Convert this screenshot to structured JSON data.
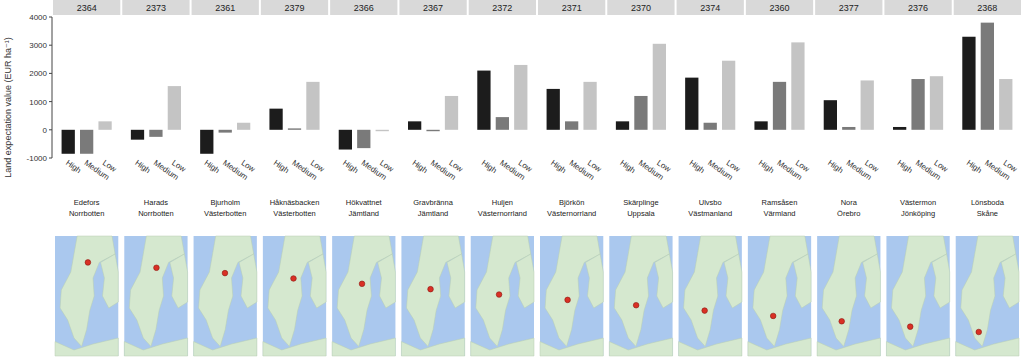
{
  "chart_data": [
    {
      "type": "bar",
      "title": "2364",
      "annotations": [
        "Edefors",
        "Norrbotten"
      ],
      "y_label": "Land expectation value (EUR ha⁻¹)",
      "categories": [
        "High",
        "Medium",
        "Low"
      ],
      "values": [
        -850,
        -850,
        300
      ],
      "colors": [
        "#1c1c1c",
        "#7a7a7a",
        "#c4c4c4"
      ],
      "ylim": [
        -1000,
        4000
      ],
      "yticks": [
        -1000,
        0,
        1000,
        2000,
        3000,
        4000
      ],
      "tick_labels": true,
      "grid": false
    },
    {
      "type": "bar",
      "title": "2373",
      "annotations": [
        "Harads",
        "Norrbotten"
      ],
      "categories": [
        "High",
        "Medium",
        "Low"
      ],
      "values": [
        -350,
        -250,
        1550
      ],
      "colors": [
        "#1c1c1c",
        "#7a7a7a",
        "#c4c4c4"
      ],
      "ylim": [
        -1000,
        4000
      ],
      "yticks": [
        -1000,
        0,
        1000,
        2000,
        3000,
        4000
      ],
      "tick_labels": "x",
      "grid": false
    },
    {
      "type": "bar",
      "title": "2361",
      "annotations": [
        "Bjurholm",
        "Västerbotten"
      ],
      "categories": [
        "High",
        "Medium",
        "Low"
      ],
      "values": [
        -850,
        -100,
        250
      ],
      "colors": [
        "#1c1c1c",
        "#7a7a7a",
        "#c4c4c4"
      ],
      "ylim": [
        -1000,
        4000
      ],
      "yticks": [
        -1000,
        0,
        1000,
        2000,
        3000,
        4000
      ],
      "tick_labels": "x",
      "grid": false
    },
    {
      "type": "bar",
      "title": "2379",
      "annotations": [
        "Håknäsbacken",
        "Västerbotten"
      ],
      "categories": [
        "High",
        "Medium",
        "Low"
      ],
      "values": [
        750,
        50,
        1700
      ],
      "colors": [
        "#1c1c1c",
        "#7a7a7a",
        "#c4c4c4"
      ],
      "ylim": [
        -1000,
        4000
      ],
      "yticks": [
        -1000,
        0,
        1000,
        2000,
        3000,
        4000
      ],
      "tick_labels": "x",
      "grid": false
    },
    {
      "type": "bar",
      "title": "2366",
      "annotations": [
        "Hökvattnet",
        "Jämtland"
      ],
      "categories": [
        "High",
        "Medium",
        "Low"
      ],
      "values": [
        -700,
        -650,
        -50
      ],
      "colors": [
        "#1c1c1c",
        "#7a7a7a",
        "#c4c4c4"
      ],
      "ylim": [
        -1000,
        4000
      ],
      "yticks": [
        -1000,
        0,
        1000,
        2000,
        3000,
        4000
      ],
      "tick_labels": "x",
      "grid": false
    },
    {
      "type": "bar",
      "title": "2367",
      "annotations": [
        "Gravbränna",
        "Jämtland"
      ],
      "categories": [
        "High",
        "Medium",
        "Low"
      ],
      "values": [
        300,
        -50,
        1200
      ],
      "colors": [
        "#1c1c1c",
        "#7a7a7a",
        "#c4c4c4"
      ],
      "ylim": [
        -1000,
        4000
      ],
      "yticks": [
        -1000,
        0,
        1000,
        2000,
        3000,
        4000
      ],
      "tick_labels": "x",
      "grid": false
    },
    {
      "type": "bar",
      "title": "2372",
      "annotations": [
        "Huljen",
        "Västernorrland"
      ],
      "categories": [
        "High",
        "Medium",
        "Low"
      ],
      "values": [
        2100,
        450,
        2300
      ],
      "colors": [
        "#1c1c1c",
        "#7a7a7a",
        "#c4c4c4"
      ],
      "ylim": [
        -1000,
        4000
      ],
      "yticks": [
        -1000,
        0,
        1000,
        2000,
        3000,
        4000
      ],
      "tick_labels": "x",
      "grid": false
    },
    {
      "type": "bar",
      "title": "2371",
      "annotations": [
        "Björkön",
        "Västernorrland"
      ],
      "categories": [
        "High",
        "Medium",
        "Low"
      ],
      "values": [
        1450,
        300,
        1700
      ],
      "colors": [
        "#1c1c1c",
        "#7a7a7a",
        "#c4c4c4"
      ],
      "ylim": [
        -1000,
        4000
      ],
      "yticks": [
        -1000,
        0,
        1000,
        2000,
        3000,
        4000
      ],
      "tick_labels": "x",
      "grid": false
    },
    {
      "type": "bar",
      "title": "2370",
      "annotations": [
        "Skärplinge",
        "Uppsala"
      ],
      "categories": [
        "High",
        "Medium",
        "Low"
      ],
      "values": [
        300,
        1200,
        3050
      ],
      "colors": [
        "#1c1c1c",
        "#7a7a7a",
        "#c4c4c4"
      ],
      "ylim": [
        -1000,
        4000
      ],
      "yticks": [
        -1000,
        0,
        1000,
        2000,
        3000,
        4000
      ],
      "tick_labels": "x",
      "grid": false
    },
    {
      "type": "bar",
      "title": "2374",
      "annotations": [
        "Ulvsbo",
        "Västmanland"
      ],
      "categories": [
        "High",
        "Medium",
        "Low"
      ],
      "values": [
        1850,
        250,
        2450
      ],
      "colors": [
        "#1c1c1c",
        "#7a7a7a",
        "#c4c4c4"
      ],
      "ylim": [
        -1000,
        4000
      ],
      "yticks": [
        -1000,
        0,
        1000,
        2000,
        3000,
        4000
      ],
      "tick_labels": "x",
      "grid": false
    },
    {
      "type": "bar",
      "title": "2360",
      "annotations": [
        "Ramsåsen",
        "Värmland"
      ],
      "categories": [
        "High",
        "Medium",
        "Low"
      ],
      "values": [
        300,
        1700,
        3100
      ],
      "colors": [
        "#1c1c1c",
        "#7a7a7a",
        "#c4c4c4"
      ],
      "ylim": [
        -1000,
        4000
      ],
      "yticks": [
        -1000,
        0,
        1000,
        2000,
        3000,
        4000
      ],
      "tick_labels": "x",
      "grid": false
    },
    {
      "type": "bar",
      "title": "2377",
      "annotations": [
        "Nora",
        "Örebro"
      ],
      "categories": [
        "High",
        "Medium",
        "Low"
      ],
      "values": [
        1050,
        100,
        1750
      ],
      "colors": [
        "#1c1c1c",
        "#7a7a7a",
        "#c4c4c4"
      ],
      "ylim": [
        -1000,
        4000
      ],
      "yticks": [
        -1000,
        0,
        1000,
        2000,
        3000,
        4000
      ],
      "tick_labels": "x",
      "grid": false
    },
    {
      "type": "bar",
      "title": "2376",
      "annotations": [
        "Västermon",
        "Jönköping"
      ],
      "categories": [
        "High",
        "Medium",
        "Low"
      ],
      "values": [
        100,
        1800,
        1900
      ],
      "colors": [
        "#1c1c1c",
        "#7a7a7a",
        "#c4c4c4"
      ],
      "ylim": [
        -1000,
        4000
      ],
      "yticks": [
        -1000,
        0,
        1000,
        2000,
        3000,
        4000
      ],
      "tick_labels": "x",
      "grid": false
    },
    {
      "type": "bar",
      "title": "2368",
      "annotations": [
        "Lönsboda",
        "Skåne"
      ],
      "categories": [
        "High",
        "Medium",
        "Low"
      ],
      "values": [
        3300,
        3800,
        1800
      ],
      "colors": [
        "#1c1c1c",
        "#7a7a7a",
        "#c4c4c4"
      ],
      "ylim": [
        -1000,
        4000
      ],
      "yticks": [
        -1000,
        0,
        1000,
        2000,
        3000,
        4000
      ],
      "tick_labels": "x",
      "grid": false
    }
  ]
}
